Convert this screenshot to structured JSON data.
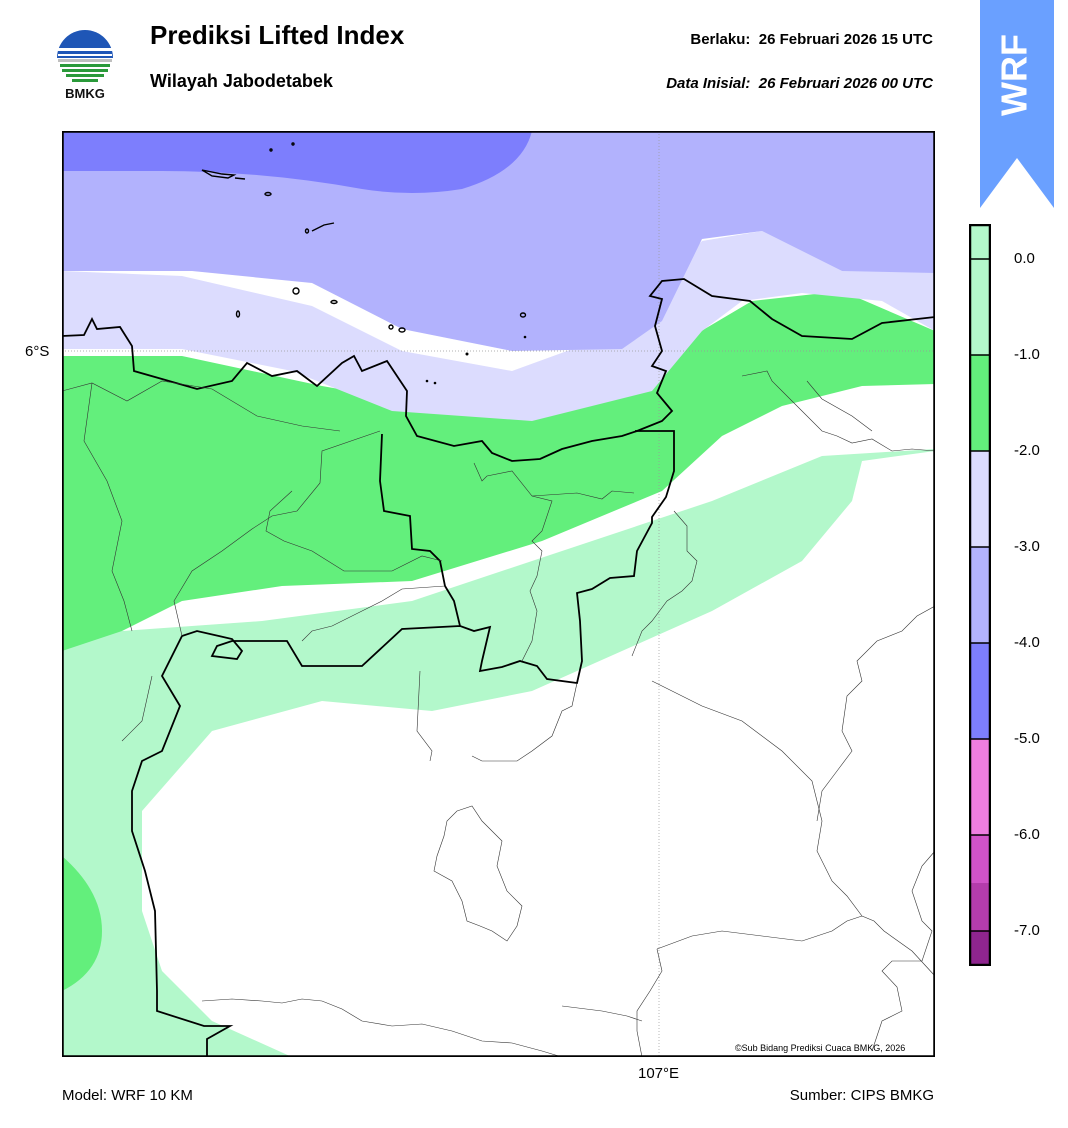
{
  "header": {
    "title": "Prediksi Lifted Index",
    "subtitle": "Wilayah Jabodetabek",
    "valid_label": "Berlaku:",
    "valid_value": "26 Februari 2026 15 UTC",
    "init_label": "Data Inisial:",
    "init_value": "26 Februari 2026 00 UTC"
  },
  "logo": {
    "text": "BMKG",
    "colors": [
      "#1f56b6",
      "#2a9a3a"
    ]
  },
  "ribbon": {
    "text": "WRF",
    "color": "#6aa0ff"
  },
  "map": {
    "lat_tick": "6°S",
    "lon_tick": "107°E",
    "copyright": "©Sub Bidang Prediksi Cuaca BMKG, 2026"
  },
  "colorbar": {
    "labels": [
      "0.0",
      "-1.0",
      "-2.0",
      "-3.0",
      "-4.0",
      "-5.0",
      "-6.0",
      "-7.0"
    ],
    "colors": [
      "#b3f8cb",
      "#63ef7c",
      "#dcdcfe",
      "#b2b2fd",
      "#7d7efd",
      "#ee7ee0",
      "#d153c9",
      "#b43cac",
      "#8f258f"
    ]
  },
  "footer": {
    "model": "Model: WRF 10 KM",
    "source": "Sumber: CIPS BMKG"
  }
}
